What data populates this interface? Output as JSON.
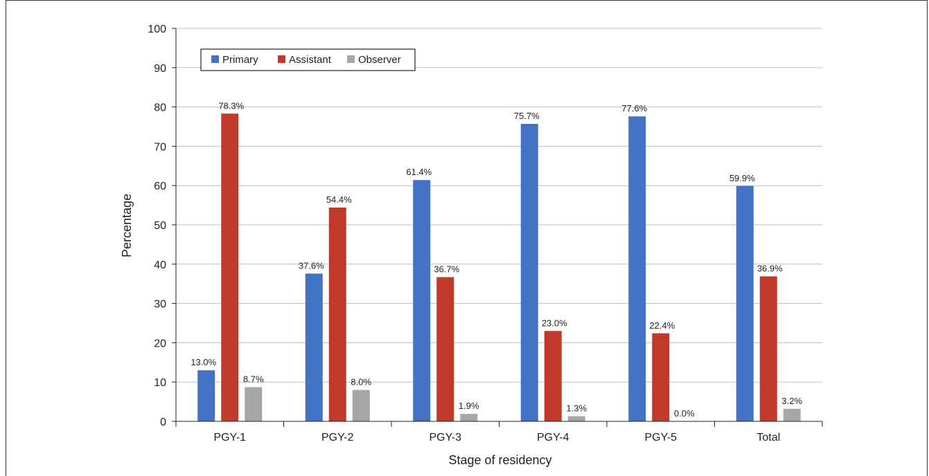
{
  "chart_data": {
    "type": "bar",
    "categories": [
      "PGY-1",
      "PGY-2",
      "PGY-3",
      "PGY-4",
      "PGY-5",
      "Total"
    ],
    "series": [
      {
        "name": "Primary",
        "values": [
          13.0,
          37.6,
          61.4,
          75.7,
          77.6,
          59.9
        ],
        "labels": [
          "13.0%",
          "37.6%",
          "61.4%",
          "75.7%",
          "77.6%",
          "59.9%"
        ]
      },
      {
        "name": "Assistant",
        "values": [
          78.3,
          54.4,
          36.7,
          23.0,
          22.4,
          36.9
        ],
        "labels": [
          "78.3%",
          "54.4%",
          "36.7%",
          "23.0%",
          "22.4%",
          "36.9%"
        ]
      },
      {
        "name": "Observer",
        "values": [
          8.7,
          8.0,
          1.9,
          1.3,
          0.0,
          3.2
        ],
        "labels": [
          "8.7%",
          "8.0%",
          "1.9%",
          "1.3%",
          "0.0%",
          "3.2%"
        ]
      }
    ],
    "colors": [
      "#4472c4",
      "#c0392b",
      "#a6a6a6"
    ],
    "xlabel": "Stage of residency",
    "ylabel": "Percentage",
    "ylim": [
      0,
      100
    ],
    "yticks": [
      0,
      10,
      20,
      30,
      40,
      50,
      60,
      70,
      80,
      90,
      100
    ],
    "grid": true,
    "legend": "top-left"
  }
}
